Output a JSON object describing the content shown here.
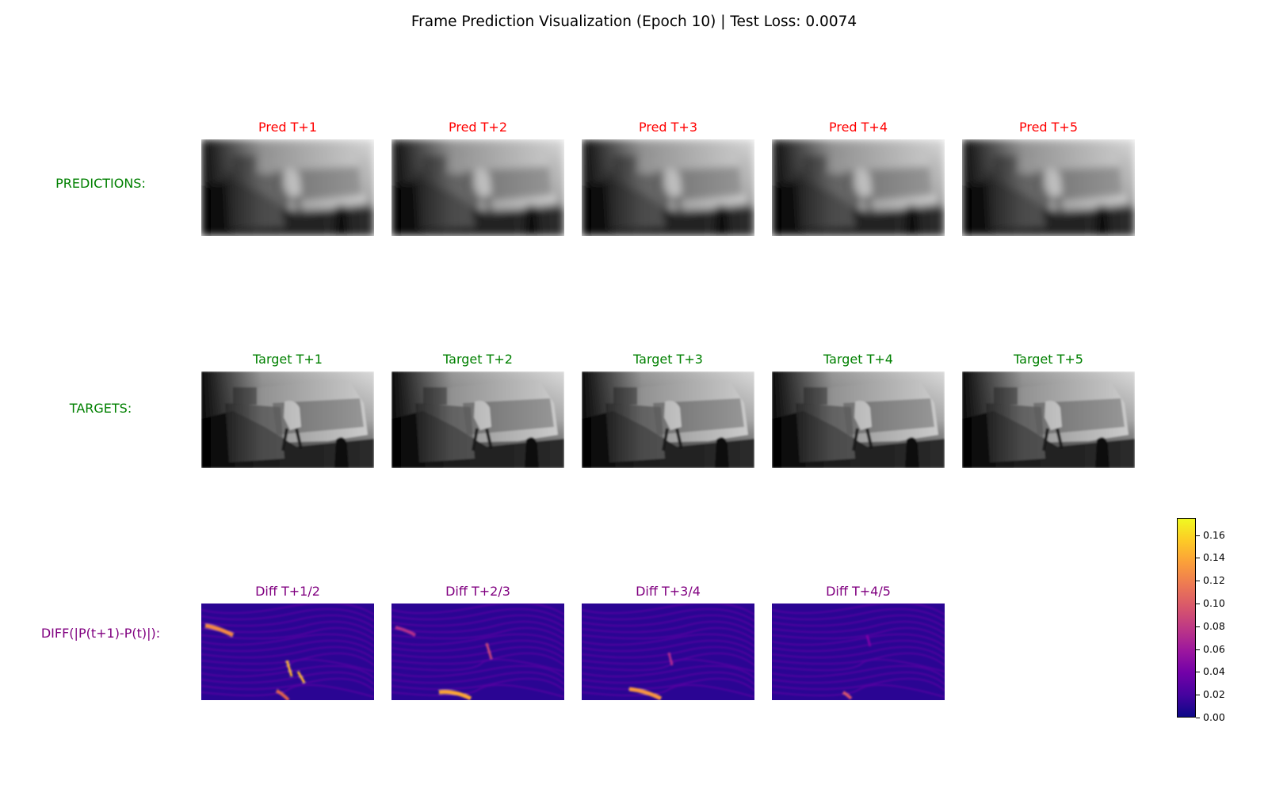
{
  "title": "Frame Prediction Visualization (Epoch 10) | Test Loss: 0.0074",
  "rows": {
    "predictions": {
      "label": "PREDICTIONS:",
      "color": "#008000",
      "title_color": "#ff0000",
      "panels": [
        "Pred T+1",
        "Pred T+2",
        "Pred T+3",
        "Pred T+4",
        "Pred T+5"
      ]
    },
    "targets": {
      "label": "TARGETS:",
      "color": "#008000",
      "title_color": "#008000",
      "panels": [
        "Target T+1",
        "Target T+2",
        "Target T+3",
        "Target T+4",
        "Target T+5"
      ]
    },
    "diffs": {
      "label": "DIFF(|P(t+1)-P(t)|):",
      "color": "#800080",
      "title_color": "#800080",
      "panels": [
        "Diff T+1/2",
        "Diff T+2/3",
        "Diff T+3/4",
        "Diff T+4/5"
      ]
    }
  },
  "colorbar": {
    "colormap": "plasma",
    "ticks": [
      "0.00",
      "0.02",
      "0.04",
      "0.06",
      "0.08",
      "0.10",
      "0.12",
      "0.14",
      "0.16"
    ],
    "min": 0.0,
    "max": 0.175
  }
}
